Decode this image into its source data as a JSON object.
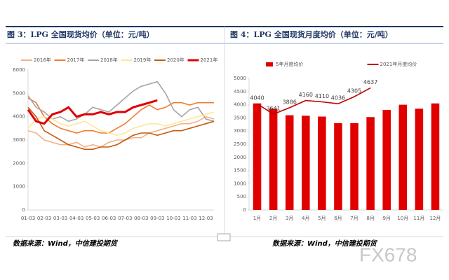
{
  "chart_data": [
    {
      "type": "line",
      "title": "图 3：LPG 全国现货均价（单位：元/吨）",
      "source": "数据来源：Wind，中信建投期货",
      "categories": [
        "01-03",
        null,
        "02-03",
        null,
        "03-03",
        null,
        "04-03",
        null,
        "05-03",
        null,
        "06-03",
        null,
        "07-03",
        null,
        "08-03",
        null,
        "09-03",
        null,
        "10-03",
        null,
        "11-03",
        null,
        "12-03",
        null
      ],
      "ylim": [
        0,
        6000
      ],
      "yticks": [
        0,
        1000,
        2000,
        3000,
        4000,
        5000,
        6000
      ],
      "grid": false,
      "series": [
        {
          "name": "2016年",
          "color": "#f4b183",
          "values": [
            3400,
            3300,
            3000,
            2900,
            2800,
            2800,
            2900,
            2700,
            2800,
            2700,
            2900,
            3000,
            3000,
            3100,
            3100,
            3300,
            3400,
            3500,
            3600,
            3700,
            3700,
            3800,
            4000,
            3900
          ]
        },
        {
          "name": "2017年",
          "color": "#ed7d31",
          "values": [
            4800,
            4600,
            4000,
            3700,
            3500,
            3400,
            3300,
            3400,
            3400,
            3300,
            3300,
            3500,
            3700,
            4000,
            4300,
            4500,
            4300,
            4400,
            4600,
            4600,
            4500,
            4600,
            4600,
            4600
          ]
        },
        {
          "name": "2018年",
          "color": "#a5a5a5",
          "values": [
            4900,
            4400,
            4200,
            3900,
            4000,
            3800,
            3900,
            4100,
            4400,
            4300,
            4200,
            4500,
            4800,
            5100,
            5300,
            5400,
            5500,
            5000,
            4300,
            4000,
            4300,
            4400,
            3900,
            3800
          ]
        },
        {
          "name": "2019年",
          "color": "#ffe699",
          "values": [
            3500,
            3900,
            4000,
            3900,
            3700,
            3600,
            3700,
            3800,
            3600,
            3400,
            3300,
            3200,
            3300,
            3500,
            3600,
            3700,
            3700,
            3600,
            3700,
            3800,
            3900,
            4000,
            4100,
            4200
          ]
        },
        {
          "name": "2020年",
          "color": "#c55a11",
          "values": [
            4400,
            4000,
            3400,
            3200,
            3000,
            2800,
            2700,
            2600,
            2600,
            2700,
            2700,
            2800,
            3000,
            3200,
            3300,
            3300,
            3200,
            3300,
            3400,
            3400,
            3500,
            3600,
            3700,
            3800
          ]
        },
        {
          "name": "2021年",
          "color": "#e00000",
          "width": 3,
          "values": [
            4300,
            3800,
            3700,
            4100,
            4200,
            4400,
            4000,
            4100,
            4100,
            4200,
            4100,
            4200,
            4200,
            4400,
            4500,
            4600,
            4700,
            null,
            null,
            null,
            null,
            null,
            null,
            null
          ]
        }
      ]
    },
    {
      "type": "bar",
      "title": "图 4：LPG 全国现货月度均价（单位：元/吨）",
      "source": "数据来源：Wind，中信建投期货",
      "categories": [
        "1月",
        "2月",
        "3月",
        "4月",
        "5月",
        "6月",
        "7月",
        "8月",
        "9月",
        "10月",
        "11月",
        "12月"
      ],
      "ylim": [
        0,
        5000
      ],
      "yticks": [
        0,
        500,
        1000,
        1500,
        2000,
        2500,
        3000,
        3500,
        4000,
        4500,
        5000
      ],
      "grid": false,
      "series": [
        {
          "name": "5年月度均价",
          "color": "#e00000",
          "values": [
            4050,
            3850,
            3600,
            3580,
            3550,
            3300,
            3300,
            3530,
            3800,
            4000,
            3850,
            4050
          ]
        },
        {
          "name": "2021年月度均价",
          "type": "line",
          "color": "#c00000",
          "data_labels": true,
          "values": [
            4040,
            3641,
            3886,
            4160,
            4110,
            4036,
            4305,
            4637,
            null,
            null,
            null,
            null
          ]
        }
      ]
    }
  ],
  "watermark": "FX678"
}
